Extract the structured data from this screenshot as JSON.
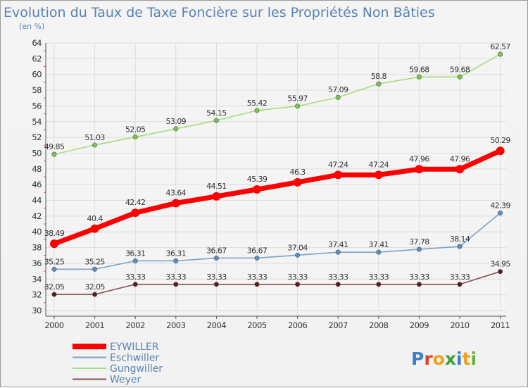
{
  "chart_data": {
    "type": "line",
    "title": "Evolution du Taux de Taxe Foncière sur les Propriétés Non Bâties",
    "subtitle": "(en %)",
    "xlabel": "",
    "ylabel": "",
    "ylim": [
      30,
      64
    ],
    "ytick_step": 2,
    "grid": true,
    "legend_position": "bottom-left",
    "categories": [
      "2000",
      "2001",
      "2002",
      "2003",
      "2004",
      "2005",
      "2006",
      "2007",
      "2008",
      "2009",
      "2010",
      "2011"
    ],
    "series": [
      {
        "name": "EYWILLER",
        "color": "#ff0000",
        "marker_color": "#ff0000",
        "values": [
          38.49,
          40.4,
          42.42,
          43.64,
          44.51,
          45.39,
          46.3,
          47.24,
          47.24,
          47.96,
          47.96,
          50.29
        ],
        "labels": [
          "38.49",
          "40.4",
          "42.42",
          "43.64",
          "44.51",
          "45.39",
          "46.3",
          "47.24",
          "47.24",
          "47.96",
          "47.96",
          "50.29"
        ]
      },
      {
        "name": "Eschwiller",
        "color": "#7ca3c8",
        "marker_color": "#5b8fc4",
        "values": [
          35.25,
          35.25,
          36.31,
          36.31,
          36.67,
          36.67,
          37.04,
          37.41,
          37.41,
          37.78,
          38.14,
          42.39
        ],
        "labels": [
          "35.25",
          "35.25",
          "36.31",
          "36.31",
          "36.67",
          "36.67",
          "37.04",
          "37.41",
          "37.41",
          "37.78",
          "38.14",
          "42.39"
        ]
      },
      {
        "name": "Gungwiller",
        "color": "#a4dd7c",
        "marker_color": "#77c94a",
        "values": [
          49.85,
          51.03,
          52.05,
          53.09,
          54.15,
          55.42,
          55.97,
          57.09,
          58.8,
          59.68,
          59.68,
          62.57
        ],
        "labels": [
          "49.85",
          "51.03",
          "52.05",
          "53.09",
          "54.15",
          "55.42",
          "55.97",
          "57.09",
          "58.8",
          "59.68",
          "59.68",
          "62.57"
        ]
      },
      {
        "name": "Weyer",
        "color": "#8a5050",
        "marker_color": "#5e1a1a",
        "values": [
          32.05,
          32.05,
          33.33,
          33.33,
          33.33,
          33.33,
          33.33,
          33.33,
          33.33,
          33.33,
          33.33,
          34.95
        ],
        "labels": [
          "32.05",
          "32.05",
          "33.33",
          "33.33",
          "33.33",
          "33.33",
          "33.33",
          "33.33",
          "33.33",
          "33.33",
          "33.33",
          "34.95"
        ]
      }
    ]
  },
  "logo": {
    "text": "Proxiti"
  }
}
